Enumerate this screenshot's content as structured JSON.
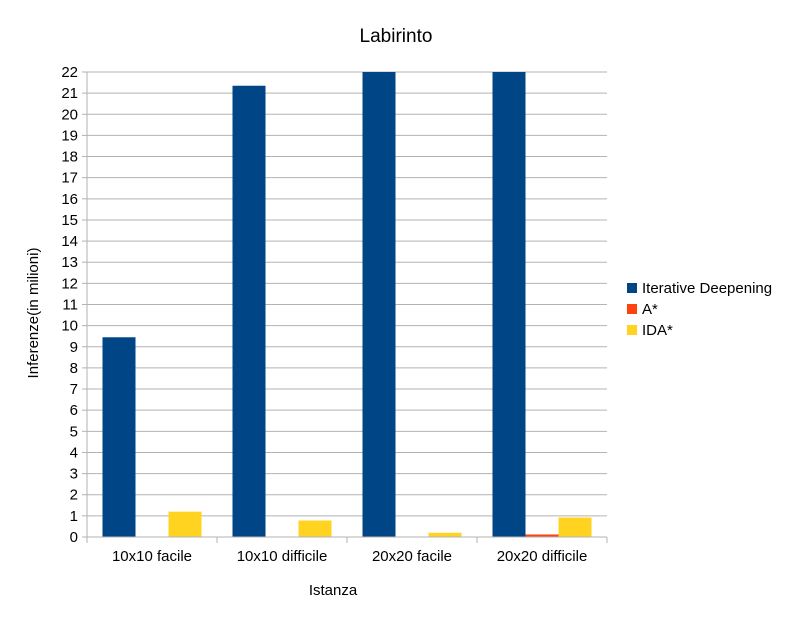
{
  "chart_data": {
    "type": "bar",
    "title": "Labirinto",
    "xlabel": "Istanza",
    "ylabel": "Inferenze(in milioni)",
    "categories": [
      "10x10 facile",
      "10x10 difficile",
      "20x20 facile",
      "20x20 difficile"
    ],
    "series": [
      {
        "name": "Iterative Deepening",
        "color": "#004586",
        "values": [
          9.45,
          21.35,
          22,
          22
        ]
      },
      {
        "name": "A*",
        "color": "#ff420e",
        "values": [
          0.01,
          0.01,
          0.01,
          0.12
        ]
      },
      {
        "name": "IDA*",
        "color": "#ffd320",
        "values": [
          1.2,
          0.78,
          0.2,
          0.92
        ]
      }
    ],
    "ylim": [
      0,
      22
    ],
    "yticks": [
      0,
      1,
      2,
      3,
      4,
      5,
      6,
      7,
      8,
      9,
      10,
      11,
      12,
      13,
      14,
      15,
      16,
      17,
      18,
      19,
      20,
      21,
      22
    ],
    "grid": true,
    "legend_position": "right"
  }
}
